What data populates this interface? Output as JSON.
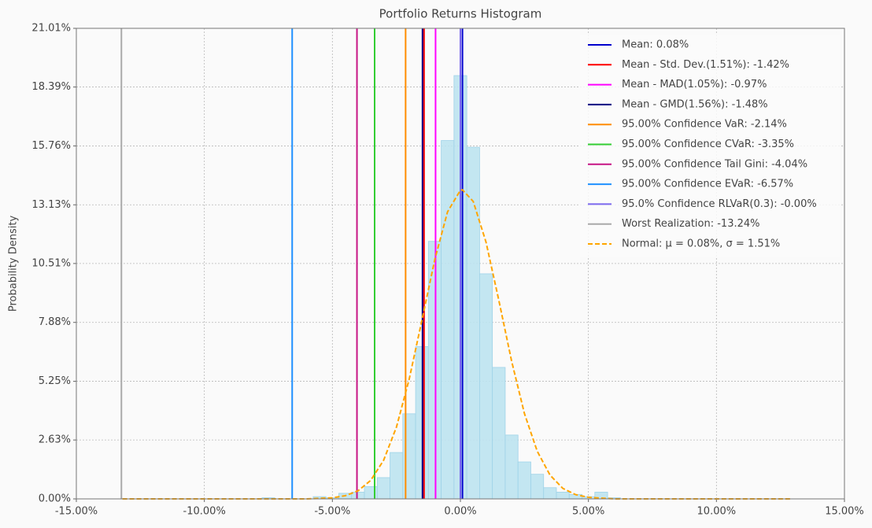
{
  "chart_data": {
    "type": "histogram",
    "title": "Portfolio Returns Histogram",
    "y_label": "Probability Density",
    "bins": [
      -7.75,
      -7.25,
      -6.75,
      -6.25,
      -5.75,
      -5.25,
      -4.75,
      -4.25,
      -3.75,
      -3.25,
      -2.75,
      -2.25,
      -1.75,
      -1.25,
      -0.75,
      -0.25,
      0.25,
      0.75,
      1.25,
      1.75,
      2.25,
      2.75,
      3.25,
      3.75,
      4.25,
      4.75,
      5.25,
      5.75,
      6.25
    ],
    "values": [
      0.05,
      0,
      0,
      0,
      0.1,
      0.05,
      0.25,
      0.3,
      0.55,
      0.95,
      2.07,
      3.8,
      6.8,
      11.5,
      16.0,
      18.9,
      15.7,
      10.05,
      5.87,
      2.85,
      1.65,
      1.1,
      0.5,
      0.3,
      0.2,
      0.1,
      0.3,
      0.05
    ],
    "color": "#bde3f0",
    "edge_color": "#9fd3e8",
    "xlim": [
      -15,
      15
    ],
    "xticks": [
      {
        "value": -15,
        "label": "-15.00%"
      },
      {
        "value": -10,
        "label": "-10.00%"
      },
      {
        "value": -5,
        "label": "-5.00%"
      },
      {
        "value": 0,
        "label": "0.00%"
      },
      {
        "value": 5,
        "label": "5.00%"
      },
      {
        "value": 10,
        "label": "10.00%"
      },
      {
        "value": 15,
        "label": "15.00%"
      }
    ],
    "ylim": [
      0,
      21.01
    ],
    "yticks": [
      {
        "value": 0,
        "label": "0.00%"
      },
      {
        "value": 2.63,
        "label": "2.63%"
      },
      {
        "value": 5.25,
        "label": "5.25%"
      },
      {
        "value": 7.88,
        "label": "7.88%"
      },
      {
        "value": 10.51,
        "label": "10.51%"
      },
      {
        "value": 13.13,
        "label": "13.13%"
      },
      {
        "value": 15.76,
        "label": "15.76%"
      },
      {
        "value": 18.39,
        "label": "18.39%"
      },
      {
        "value": 21.01,
        "label": "21.01%"
      }
    ],
    "grid": true,
    "vlines": [
      {
        "name": "Mean: 0.08%",
        "color": "#0000cd",
        "value": 0.08
      },
      {
        "name": "Mean - Std. Dev.(1.51%): -1.42%",
        "color": "#ff0000",
        "value": -1.42
      },
      {
        "name": "Mean - MAD(1.05%): -0.97%",
        "color": "#ff00ff",
        "value": -0.97
      },
      {
        "name": "Mean - GMD(1.56%): -1.48%",
        "color": "#000080",
        "value": -1.48
      },
      {
        "name": "95.00% Confidence VaR: -2.14%",
        "color": "#ff8c00",
        "value": -2.14
      },
      {
        "name": "95.00% Confidence CVaR: -3.35%",
        "color": "#32cd32",
        "value": -3.35
      },
      {
        "name": "95.00% Confidence Tail Gini: -4.04%",
        "color": "#c71585",
        "value": -4.04
      },
      {
        "name": "95.00% Confidence EVaR: -6.57%",
        "color": "#1e90ff",
        "value": -6.57
      },
      {
        "name": "95.0% Confidence RLVaR(0.3): -0.00%",
        "color": "#7b68ee",
        "value": 0
      },
      {
        "name": "Worst Realization: -13.24%",
        "color": "#a9a9a9",
        "value": -13.24
      }
    ],
    "normal": {
      "name": "Normal: μ = 0.08%, σ = 1.51%",
      "color": "#ffa500",
      "x": [
        -13.2,
        -6,
        -5,
        -4.5,
        -4,
        -3.5,
        -3,
        -2.5,
        -2,
        -1.5,
        -1,
        -0.5,
        0,
        0.08,
        0.5,
        1,
        1.5,
        2,
        2.5,
        3,
        3.5,
        4,
        4.5,
        5,
        6,
        12.9
      ],
      "values": [
        0,
        0,
        0.05,
        0.14,
        0.36,
        0.83,
        1.72,
        3.2,
        5.34,
        7.99,
        10.69,
        12.82,
        13.78,
        13.8,
        13.28,
        11.47,
        8.87,
        6.15,
        3.82,
        2.13,
        1.06,
        0.47,
        0.19,
        0.07,
        0,
        0
      ]
    }
  }
}
